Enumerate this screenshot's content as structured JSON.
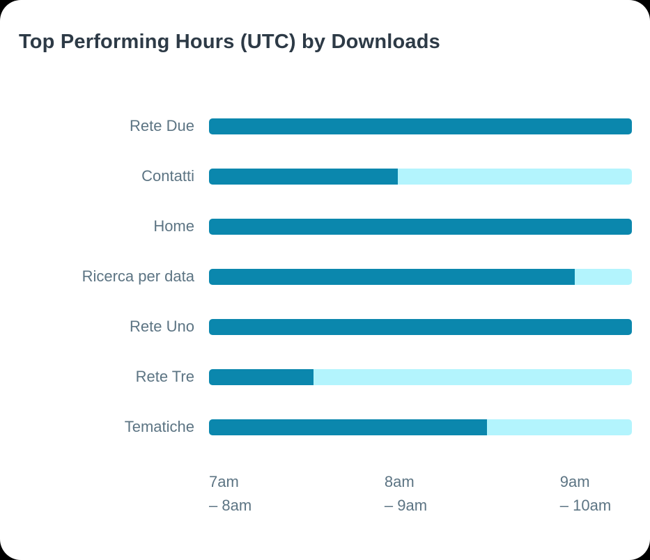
{
  "title": "Top Performing Hours (UTC) by Downloads",
  "colors": {
    "page_bg": "#000000",
    "card_bg": "#ffffff",
    "title_text": "#2d3a46",
    "label_text": "#5c7483",
    "primary_bar": "#0b87ad",
    "secondary_bar": "#b3f4fd"
  },
  "chart_data": {
    "type": "bar",
    "orientation": "horizontal-stacked",
    "title": "Top Performing Hours (UTC) by Downloads",
    "categories": [
      "Rete Due",
      "Contatti",
      "Home",
      "Ricerca per data",
      "Rete Uno",
      "Rete Tre",
      "Tematiche"
    ],
    "series": [
      {
        "name": "dark-segment-share",
        "color": "#0b87ad",
        "values_pct": [
          100,
          44.6,
          100,
          86.5,
          100,
          24.7,
          65.7
        ]
      },
      {
        "name": "light-segment-share",
        "color": "#b3f4fd",
        "values_pct": [
          0,
          55.4,
          0,
          13.5,
          0,
          75.3,
          34.3
        ]
      }
    ],
    "x_axis": {
      "range_label": "7am to 10am UTC",
      "tick_labels": [
        {
          "line1": "7am",
          "line2": "– 8am",
          "pos_pct": 0
        },
        {
          "line1": "8am",
          "line2": "– 9am",
          "pos_pct": 41.5
        },
        {
          "line1": "9am",
          "line2": "– 10am",
          "pos_pct": 83
        }
      ]
    },
    "legend": "none",
    "grid": "off"
  }
}
